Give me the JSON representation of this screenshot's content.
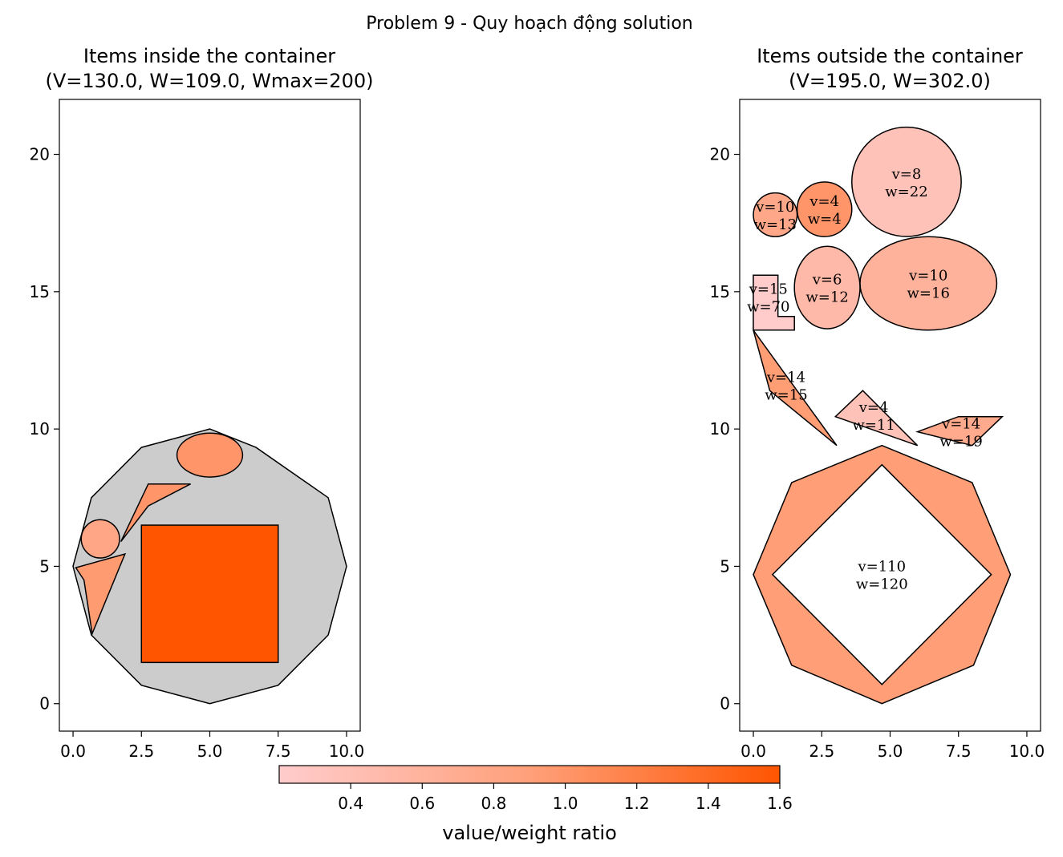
{
  "figure": {
    "suptitle": "Problem 9 - Quy hoạch động solution"
  },
  "colors": {
    "container_fill": "#cccccc",
    "edge": "#000000",
    "cmap_low": "#ffcccc",
    "cmap_mid": "#ffa07a",
    "cmap_high": "#ff5500"
  },
  "chart_data": [
    {
      "type": "packing",
      "title_line1": "Items inside the container",
      "title_line2": "(V=130.0, W=109.0, Wmax=200)",
      "xlim": [
        -0.5,
        10.5
      ],
      "ylim": [
        -1,
        22
      ],
      "xticks": [
        0.0,
        2.5,
        5.0,
        7.5,
        10.0
      ],
      "xtick_labels": [
        "0.0",
        "2.5",
        "5.0",
        "7.5",
        "10.0"
      ],
      "yticks": [
        0,
        5,
        10,
        15,
        20
      ],
      "ytick_labels": [
        "0",
        "5",
        "10",
        "15",
        "20"
      ],
      "container": {
        "points": [
          [
            5,
            10
          ],
          [
            6.69,
            9.33
          ],
          [
            9.33,
            7.5
          ],
          [
            10,
            5
          ],
          [
            9.33,
            2.5
          ],
          [
            7.5,
            0.67
          ],
          [
            5,
            0
          ],
          [
            2.5,
            0.67
          ],
          [
            0.67,
            2.5
          ],
          [
            0,
            5
          ],
          [
            0.67,
            7.5
          ],
          [
            2.5,
            9.33
          ]
        ]
      },
      "items": [
        {
          "shape": "rect",
          "x": 2.5,
          "y": 1.5,
          "w": 5,
          "h": 5,
          "ratio": 1.6
        },
        {
          "shape": "ellipse",
          "cx": 5,
          "cy": 9.05,
          "rx": 1.2,
          "ry": 0.8,
          "ratio": 1.0
        },
        {
          "shape": "circle",
          "cx": 1.0,
          "cy": 6.0,
          "r": 0.7,
          "ratio": 0.8
        },
        {
          "shape": "polygon",
          "points": [
            [
              2.75,
              8
            ],
            [
              4.3,
              8
            ],
            [
              2.75,
              7.2
            ],
            [
              1.75,
              5.9
            ]
          ],
          "ratio": 1.0
        },
        {
          "shape": "polygon",
          "points": [
            [
              0.1,
              4.95
            ],
            [
              1.9,
              5.45
            ],
            [
              0.7,
              2.55
            ],
            [
              0.4,
              4.5
            ]
          ],
          "ratio": 0.95
        }
      ]
    },
    {
      "type": "packing",
      "title_line1": "Items outside the container",
      "title_line2": "(V=195.0, W=302.0)",
      "xlim": [
        -0.5,
        10.5
      ],
      "ylim": [
        -1,
        22
      ],
      "xticks": [
        0.0,
        2.5,
        5.0,
        7.5,
        10.0
      ],
      "xtick_labels": [
        "0.0",
        "2.5",
        "5.0",
        "7.5",
        "10.0"
      ],
      "yticks": [
        0,
        5,
        10,
        15,
        20
      ],
      "ytick_labels": [
        "0",
        "5",
        "10",
        "15",
        "20"
      ],
      "items": [
        {
          "shape": "octagon-hole",
          "outer": [
            [
              4.7,
              9.4
            ],
            [
              8.0,
              8.05
            ],
            [
              9.4,
              4.7
            ],
            [
              8.05,
              1.4
            ],
            [
              4.7,
              0
            ],
            [
              1.4,
              1.4
            ],
            [
              0,
              4.7
            ],
            [
              1.4,
              8.05
            ]
          ],
          "inner": [
            [
              4.7,
              8.7
            ],
            [
              8.7,
              4.7
            ],
            [
              4.7,
              0.7
            ],
            [
              0.7,
              4.7
            ]
          ],
          "ratio": 0.92,
          "v_label": "v=110",
          "w_label": "w=120",
          "lx": 4.7,
          "ly": 4.7
        },
        {
          "shape": "circle",
          "cx": 5.6,
          "cy": 19.0,
          "r": 2.0,
          "ratio": 0.36,
          "v_label": "v=8",
          "w_label": "w=22",
          "lx": 5.6,
          "ly": 19.0
        },
        {
          "shape": "circle",
          "cx": 0.8,
          "cy": 17.8,
          "r": 0.8,
          "ratio": 0.77,
          "v_label": "v=10",
          "w_label": "w=13",
          "lx": 0.8,
          "ly": 17.8
        },
        {
          "shape": "circle",
          "cx": 2.6,
          "cy": 18.0,
          "r": 1.0,
          "ratio": 1.0,
          "v_label": "v=4",
          "w_label": "w=4",
          "lx": 2.6,
          "ly": 18.0
        },
        {
          "shape": "ellipse",
          "cx": 2.7,
          "cy": 15.15,
          "rx": 1.2,
          "ry": 1.5,
          "ratio": 0.5,
          "v_label": "v=6",
          "w_label": "w=12",
          "lx": 2.7,
          "ly": 15.15
        },
        {
          "shape": "ellipse",
          "cx": 6.4,
          "cy": 15.3,
          "rx": 2.5,
          "ry": 1.7,
          "ratio": 0.62,
          "v_label": "v=10",
          "w_label": "w=16",
          "lx": 6.4,
          "ly": 15.3
        },
        {
          "shape": "polygon",
          "points": [
            [
              0,
              13.6
            ],
            [
              1.5,
              13.6
            ],
            [
              1.5,
              14.1
            ],
            [
              0.9,
              14.1
            ],
            [
              0.9,
              15.6
            ],
            [
              0,
              15.6
            ]
          ],
          "ratio": 0.21,
          "v_label": "v=15",
          "w_label": "w=70",
          "lx": 0.55,
          "ly": 14.8
        },
        {
          "shape": "polygon",
          "points": [
            [
              0,
              13.6
            ],
            [
              3.05,
              9.4
            ],
            [
              0.6,
              11.4
            ]
          ],
          "ratio": 0.93,
          "v_label": "v=14",
          "w_label": "w=15",
          "lx": 1.2,
          "ly": 11.6
        },
        {
          "shape": "polygon",
          "points": [
            [
              4.0,
              11.4
            ],
            [
              6.0,
              9.4
            ],
            [
              3.0,
              10.45
            ]
          ],
          "ratio": 0.36,
          "v_label": "v=4",
          "w_label": "w=11",
          "lx": 4.4,
          "ly": 10.5
        },
        {
          "shape": "polygon",
          "points": [
            [
              6.0,
              9.9
            ],
            [
              7.5,
              10.45
            ],
            [
              9.1,
              10.45
            ],
            [
              8.0,
              9.4
            ]
          ],
          "ratio": 0.74,
          "v_label": "v=14",
          "w_label": "w=19",
          "lx": 7.6,
          "ly": 9.9
        }
      ]
    }
  ],
  "colorbar": {
    "min": 0.2,
    "max": 1.6,
    "ticks": [
      0.4,
      0.6,
      0.8,
      1.0,
      1.2,
      1.4,
      1.6
    ],
    "tick_labels": [
      "0.4",
      "0.6",
      "0.8",
      "1.0",
      "1.2",
      "1.4",
      "1.6"
    ],
    "label": "value/weight ratio"
  }
}
